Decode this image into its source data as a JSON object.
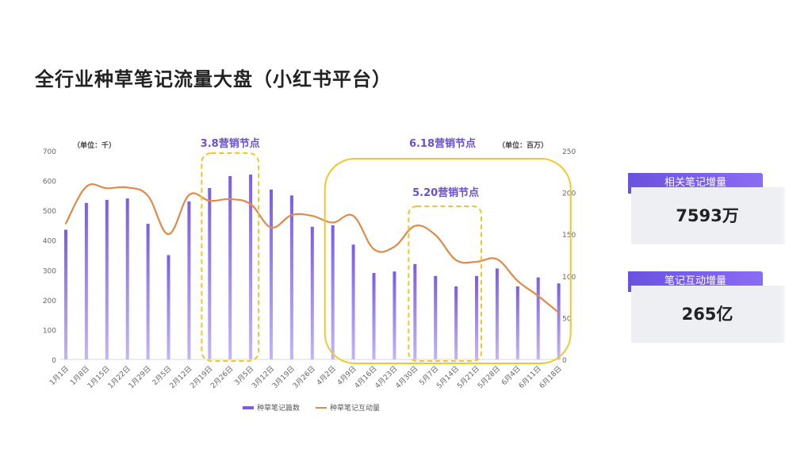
{
  "page": {
    "title": "全行业种草笔记流量大盘（小红书平台）"
  },
  "kpis": [
    {
      "label": "相关笔记增量",
      "value": "7593万"
    },
    {
      "label": "笔记互动增量",
      "value": "265亿"
    }
  ],
  "colors": {
    "bar": "#7b5ce6",
    "bar_light": "#c3b4f7",
    "line": "#e08a4a",
    "highlight_box": "#f0c72a",
    "highlight_text": "#6a4fd6",
    "axis_text": "#666666"
  },
  "chart_data": {
    "type": "bar",
    "categories": [
      "1月1日",
      "1月8日",
      "1月15日",
      "1月22日",
      "1月29日",
      "2月5日",
      "2月12日",
      "2月19日",
      "2月26日",
      "3月5日",
      "3月12日",
      "3月19日",
      "3月26日",
      "4月2日",
      "4月9日",
      "4月16日",
      "4月23日",
      "4月30日",
      "5月7日",
      "5月14日",
      "5月21日",
      "5月28日",
      "6月4日",
      "6月11日",
      "6月18日"
    ],
    "series": [
      {
        "name": "种草笔记篇数",
        "type": "bar",
        "axis": "left",
        "values": [
          435,
          525,
          535,
          540,
          455,
          350,
          530,
          575,
          615,
          620,
          570,
          550,
          445,
          450,
          385,
          290,
          295,
          320,
          280,
          245,
          280,
          305,
          245,
          275,
          255
        ]
      },
      {
        "name": "种草笔记互动量",
        "type": "line",
        "axis": "right",
        "values": [
          163,
          207,
          205,
          206,
          196,
          150,
          197,
          190,
          192,
          186,
          158,
          173,
          172,
          164,
          172,
          132,
          135,
          160,
          149,
          119,
          117,
          120,
          94,
          76,
          56
        ]
      }
    ],
    "y_left": {
      "min": 0,
      "max": 700,
      "ticks": [
        0,
        100,
        200,
        300,
        400,
        500,
        600,
        700
      ],
      "unit_label": "（单位：千）"
    },
    "y_right": {
      "min": 0,
      "max": 250,
      "ticks": [
        0,
        50,
        100,
        150,
        200,
        250
      ],
      "unit_label": "（单位：百万）"
    },
    "legend_position": "bottom",
    "annotations": [
      {
        "label": "3.8营销节点",
        "from": "2月19日",
        "to": "3月5日"
      },
      {
        "label": "6.18营销节点",
        "from": "4月2日",
        "to": "6月18日"
      },
      {
        "label": "5.20营销节点",
        "from": "4月30日",
        "to": "5月21日"
      }
    ]
  }
}
